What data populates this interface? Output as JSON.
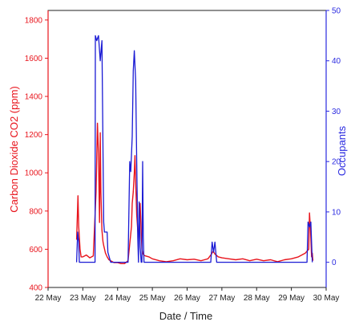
{
  "chart_data": {
    "type": "line",
    "xlabel": "Date / Time",
    "ylabel_left": "Carbon Dioxide CO2 (ppm)",
    "ylabel_right": "Occupants",
    "x_ticks": [
      "22 May",
      "23 May",
      "24 May",
      "25 May",
      "26 May",
      "27 May",
      "28 May",
      "29 May",
      "30 May"
    ],
    "xlim": [
      22,
      30
    ],
    "ylim_left": [
      400,
      1850
    ],
    "yticks_left": [
      400,
      600,
      800,
      1000,
      1200,
      1400,
      1600,
      1800
    ],
    "ylim_right": [
      -5,
      50
    ],
    "yticks_right": [
      0,
      10,
      20,
      30,
      40,
      50
    ],
    "grid": false,
    "colors": {
      "co2": "#e8141c",
      "occupants": "#1a1ad4",
      "left_axis": "#e8141c",
      "right_axis": "#2a2ae0"
    },
    "series": [
      {
        "name": "Carbon Dioxide CO2 (ppm)",
        "axis": "left",
        "x": [
          22.82,
          22.86,
          22.88,
          22.92,
          22.95,
          23.0,
          23.1,
          23.2,
          23.3,
          23.38,
          23.42,
          23.45,
          23.48,
          23.5,
          23.52,
          23.55,
          23.58,
          23.6,
          23.65,
          23.7,
          23.75,
          23.8,
          23.9,
          24.0,
          24.1,
          24.2,
          24.3,
          24.4,
          24.42,
          24.45,
          24.48,
          24.5,
          24.52,
          24.55,
          24.58,
          24.6,
          24.62,
          24.65,
          24.68,
          24.7,
          24.72,
          24.75,
          24.8,
          24.9,
          25.0,
          25.2,
          25.4,
          25.6,
          25.8,
          26.0,
          26.2,
          26.4,
          26.6,
          26.7,
          26.75,
          26.8,
          26.9,
          27.0,
          27.2,
          27.4,
          27.6,
          27.8,
          28.0,
          28.2,
          28.4,
          28.6,
          28.8,
          29.0,
          29.2,
          29.4,
          29.5,
          29.52,
          29.55,
          29.58,
          29.6,
          29.62
        ],
        "y": [
          650,
          880,
          720,
          600,
          560,
          560,
          570,
          555,
          565,
          900,
          1260,
          1100,
          740,
          1210,
          900,
          700,
          640,
          620,
          580,
          560,
          545,
          540,
          530,
          530,
          525,
          525,
          540,
          720,
          840,
          900,
          1000,
          1090,
          950,
          780,
          700,
          650,
          720,
          840,
          690,
          600,
          580,
          570,
          565,
          560,
          550,
          540,
          535,
          540,
          550,
          545,
          548,
          540,
          550,
          575,
          590,
          575,
          560,
          555,
          550,
          545,
          550,
          540,
          548,
          540,
          545,
          535,
          545,
          550,
          560,
          580,
          600,
          790,
          700,
          560,
          580,
          540
        ]
      },
      {
        "name": "Occupants",
        "axis": "right",
        "x": [
          22.82,
          22.85,
          22.88,
          22.9,
          23.3,
          23.35,
          23.36,
          23.4,
          23.45,
          23.5,
          23.55,
          23.6,
          23.62,
          23.7,
          23.72,
          23.8,
          24.0,
          24.3,
          24.35,
          24.38,
          24.42,
          24.45,
          24.48,
          24.52,
          24.55,
          24.58,
          24.6,
          24.62,
          24.65,
          24.68,
          24.7,
          24.72,
          24.74,
          24.76,
          24.8,
          26.6,
          26.68,
          26.72,
          26.76,
          26.8,
          26.85,
          26.9,
          29.4,
          29.45,
          29.48,
          29.52,
          29.56,
          29.6
        ],
        "y": [
          0,
          6,
          4,
          0,
          0,
          0,
          45,
          44,
          45,
          40,
          44,
          8,
          6,
          6,
          2,
          0,
          0,
          0,
          20,
          18,
          25,
          38,
          42,
          36,
          20,
          5,
          0,
          12,
          3,
          0,
          0,
          20,
          5,
          0,
          0,
          0,
          0,
          4,
          2,
          4,
          0,
          0,
          0,
          0,
          8,
          7,
          8,
          0
        ]
      }
    ]
  }
}
